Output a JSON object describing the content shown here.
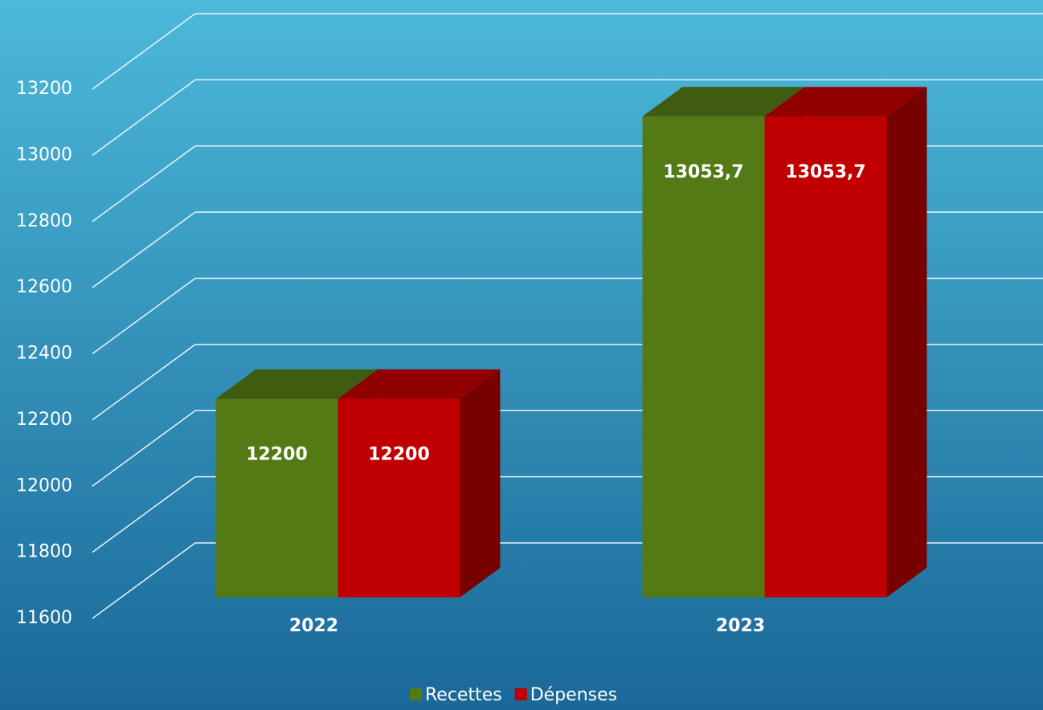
{
  "chart_data": {
    "type": "bar3d",
    "categories": [
      "2022",
      "2023"
    ],
    "series": [
      {
        "name": "Recettes",
        "color": "#547a16",
        "values": [
          12200,
          13053.7
        ],
        "value_labels": [
          "12200",
          "13053,7"
        ]
      },
      {
        "name": "Dépenses",
        "color": "#c00000",
        "values": [
          12200,
          13053.7
        ],
        "value_labels": [
          "12200",
          "13053,7"
        ]
      }
    ],
    "ylim": [
      11600,
      13200
    ],
    "yticks": [
      11600,
      11800,
      12000,
      12200,
      12400,
      12600,
      12800,
      13000,
      13200
    ],
    "grid": true,
    "legend": "bottom"
  }
}
